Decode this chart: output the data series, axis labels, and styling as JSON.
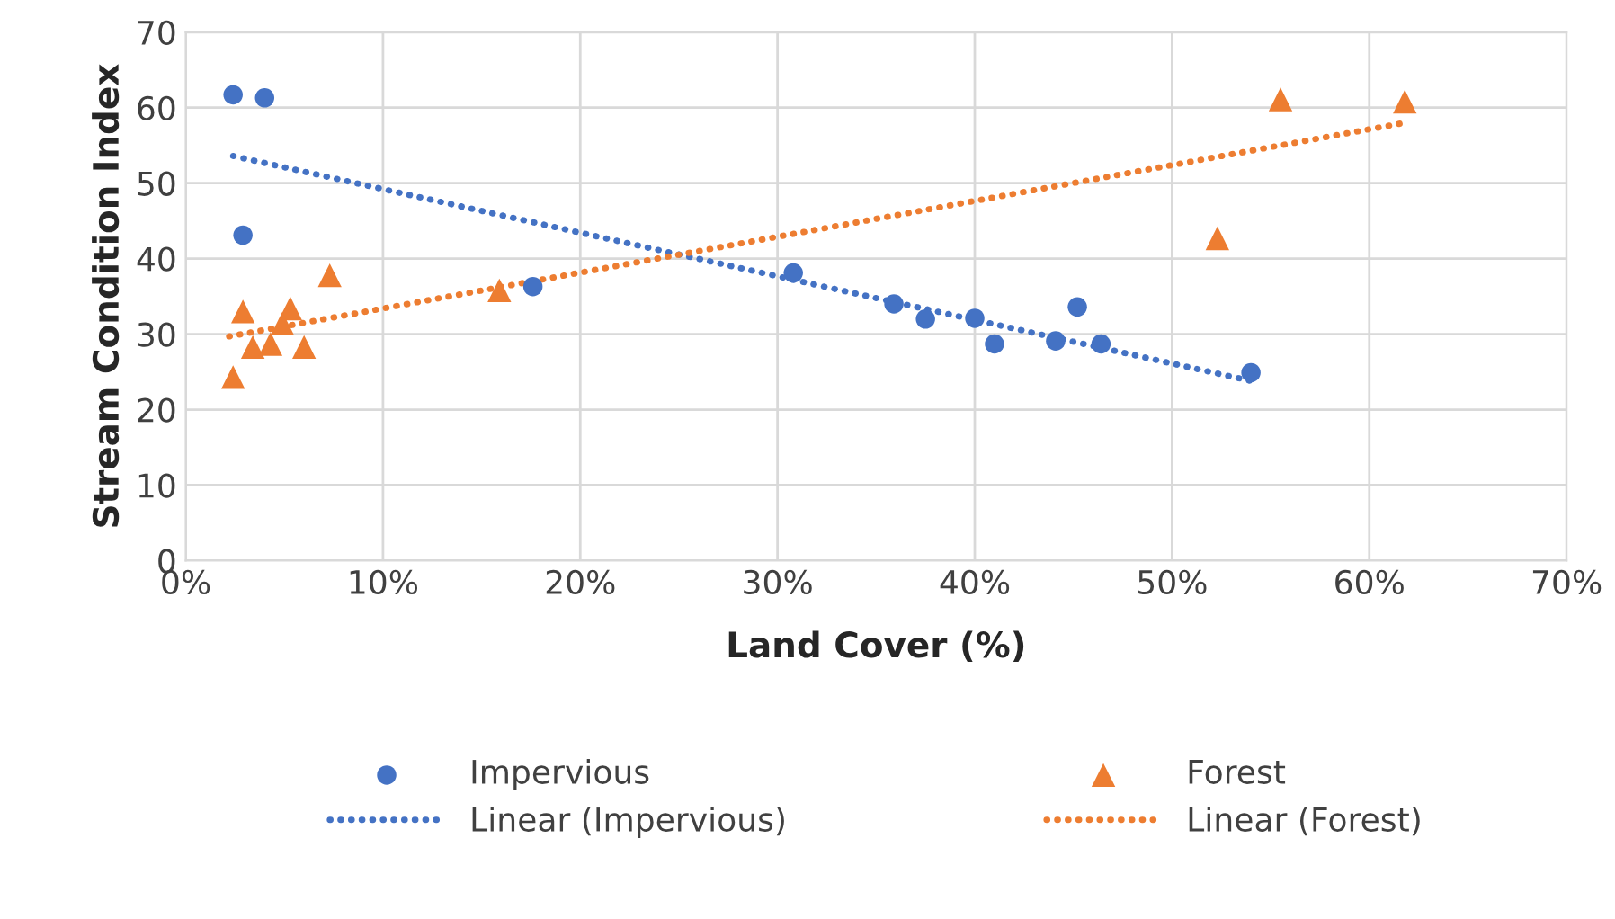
{
  "chart_data": {
    "type": "scatter",
    "xlabel": "Land Cover (%)",
    "ylabel": "Stream Condition Index",
    "xlim": [
      0,
      70
    ],
    "ylim": [
      0,
      70
    ],
    "xticks": [
      {
        "value": 0,
        "label": "0%"
      },
      {
        "value": 10,
        "label": "10%"
      },
      {
        "value": 20,
        "label": "20%"
      },
      {
        "value": 30,
        "label": "30%"
      },
      {
        "value": 40,
        "label": "40%"
      },
      {
        "value": 50,
        "label": "50%"
      },
      {
        "value": 60,
        "label": "60%"
      },
      {
        "value": 70,
        "label": "70%"
      }
    ],
    "yticks": [
      0,
      10,
      20,
      30,
      40,
      50,
      60,
      70
    ],
    "grid": true,
    "legend": "bottom",
    "series": [
      {
        "name": "Impervious",
        "marker": "circle",
        "color": "#4472c4",
        "x": [
          2.4,
          4.0,
          2.9,
          17.6,
          30.8,
          35.9,
          37.5,
          40.0,
          41.0,
          44.1,
          45.2,
          46.4,
          54.0
        ],
        "values": [
          61.7,
          61.3,
          43.1,
          36.3,
          38.1,
          34.0,
          32.0,
          32.1,
          28.7,
          29.1,
          33.6,
          28.7,
          24.9
        ]
      },
      {
        "name": "Forest",
        "marker": "triangle",
        "color": "#ed7d31",
        "x": [
          2.9,
          7.3,
          15.9,
          2.4,
          3.4,
          4.3,
          5.3,
          4.9,
          6.0,
          55.5,
          61.8,
          52.3
        ],
        "values": [
          33.0,
          37.8,
          35.8,
          24.3,
          28.3,
          28.7,
          33.4,
          31.4,
          28.3,
          61.1,
          60.8,
          42.7
        ]
      },
      {
        "name": "Linear (Impervious)",
        "type": "line",
        "line_style": "dotted",
        "marker": "none",
        "color": "#4472c4",
        "x": [
          2.4,
          54.0
        ],
        "values": [
          53.6,
          23.8
        ]
      },
      {
        "name": "Linear (Forest)",
        "type": "line",
        "line_style": "dotted",
        "marker": "none",
        "color": "#ed7d31",
        "x": [
          2.2,
          61.6
        ],
        "values": [
          29.7,
          57.9
        ]
      }
    ]
  }
}
